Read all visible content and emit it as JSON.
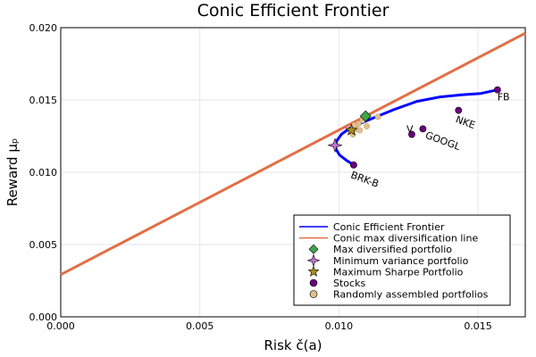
{
  "chart_data": {
    "type": "scatter",
    "title": "Conic Efficient Frontier",
    "xlabel": "Risk č(a)",
    "ylabel": "Reward μₚ",
    "xlim": [
      0.0,
      0.0167
    ],
    "ylim": [
      0.0,
      0.02
    ],
    "x_ticks": [
      "0.000",
      "0.005",
      "0.010",
      "0.015"
    ],
    "x_tick_values": [
      0.0,
      0.005,
      0.01,
      0.015
    ],
    "y_ticks": [
      "0.000",
      "0.005",
      "0.010",
      "0.015",
      "0.020"
    ],
    "y_tick_values": [
      0.0,
      0.005,
      0.01,
      0.015,
      0.02
    ],
    "grid": true,
    "legend_position": "bottom-right",
    "colors": {
      "frontier": "#0000ff",
      "line": "#e26f46",
      "max_div": "#3da44d",
      "min_var": "#c271d2",
      "max_sharpe": "#ac8d18",
      "stocks": "#6a0080",
      "random": "#e2c08c"
    },
    "frontier": {
      "name": "Conic Efficient Frontier",
      "x": [
        0.01053,
        0.01025,
        0.01002,
        0.00991,
        0.00987,
        0.00993,
        0.0101,
        0.0104,
        0.0108,
        0.0113,
        0.012,
        0.0128,
        0.0136,
        0.0144,
        0.0151,
        0.0157
      ],
      "y": [
        0.0105,
        0.01085,
        0.0112,
        0.01155,
        0.01185,
        0.0122,
        0.01265,
        0.01305,
        0.0134,
        0.0138,
        0.01435,
        0.0149,
        0.0152,
        0.01535,
        0.01545,
        0.0157
      ]
    },
    "max_div_line": {
      "name": "Conic max diversification line",
      "x": [
        0.0,
        0.0167
      ],
      "y": [
        0.00292,
        0.01962
      ]
    },
    "max_diversified": {
      "name": "Max diversified portfolio",
      "x": 0.01096,
      "y": 0.01388
    },
    "min_variance": {
      "name": "Minimum variance portfolio",
      "x": 0.00986,
      "y": 0.01187
    },
    "max_sharpe": {
      "name": "Maximum Sharpe Portfolio",
      "x": 0.01045,
      "y": 0.01291
    },
    "stocks": {
      "name": "Stocks",
      "points": [
        {
          "label": "FB",
          "x": 0.0157,
          "y": 0.0157
        },
        {
          "label": "NKE",
          "x": 0.0143,
          "y": 0.01428
        },
        {
          "label": "V",
          "x": 0.01262,
          "y": 0.01262
        },
        {
          "label": "GOOGL",
          "x": 0.01302,
          "y": 0.013
        },
        {
          "label": "BRK-B",
          "x": 0.01053,
          "y": 0.0105
        }
      ]
    },
    "random": {
      "name": "Randomly assembled portfolios",
      "points": [
        {
          "x": 0.0105,
          "y": 0.01262
        },
        {
          "x": 0.01062,
          "y": 0.013
        },
        {
          "x": 0.0107,
          "y": 0.01335
        },
        {
          "x": 0.01085,
          "y": 0.0136
        },
        {
          "x": 0.011,
          "y": 0.01318
        },
        {
          "x": 0.0114,
          "y": 0.01383
        },
        {
          "x": 0.01055,
          "y": 0.01325
        },
        {
          "x": 0.01075,
          "y": 0.0129
        }
      ]
    }
  }
}
